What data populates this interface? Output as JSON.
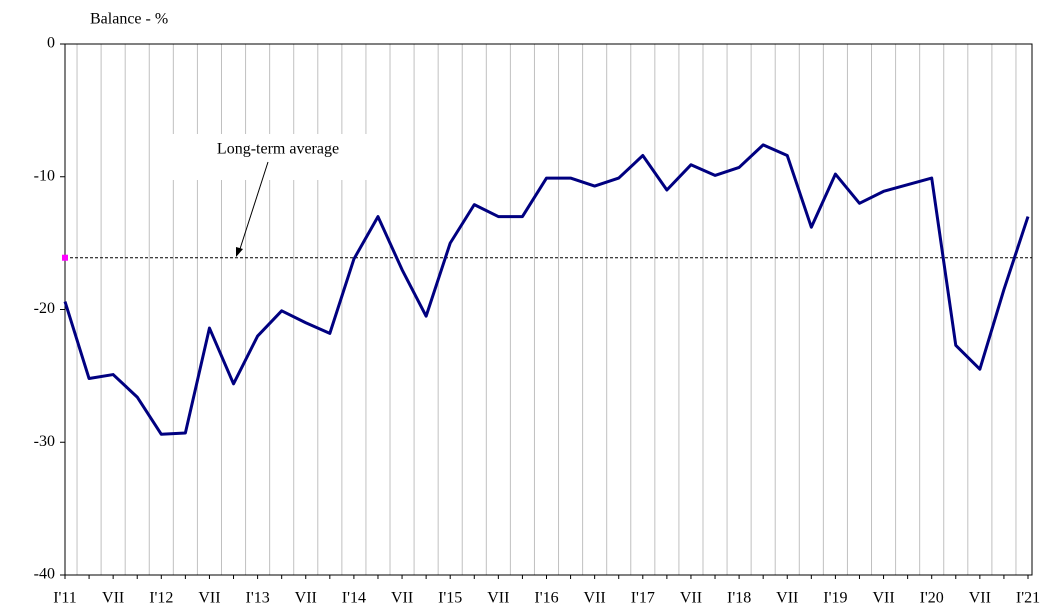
{
  "chart_data": {
    "type": "line",
    "y_axis_label": "Balance - %",
    "categories": [
      "I'11",
      null,
      "VII",
      null,
      "I'12",
      null,
      "VII",
      null,
      "I'13",
      null,
      "VII",
      null,
      "I'14",
      null,
      "VII",
      null,
      "I'15",
      null,
      "VII",
      null,
      "I'16",
      null,
      "VII",
      null,
      "I'17",
      null,
      "VII",
      null,
      "I'18",
      null,
      "VII",
      null,
      "I'19",
      null,
      "VII",
      null,
      "I'20",
      null,
      "VII",
      null,
      "I'21"
    ],
    "series": [
      {
        "name": "Balance",
        "color": "#000080",
        "values": [
          -19.4,
          -25.2,
          -24.9,
          -26.6,
          -29.4,
          -29.3,
          -21.4,
          -25.6,
          -22,
          -20.1,
          -21,
          -21.8,
          -16.2,
          -13,
          -17,
          -20.5,
          -15,
          -12.1,
          -13,
          -13,
          -10.1,
          -10.1,
          -10.7,
          -10.1,
          -8.4,
          -11,
          -9.1,
          -9.9,
          -9.3,
          -7.6,
          -8.4,
          -13.8,
          -9.8,
          -12,
          -11.1,
          -10.6,
          -10.1,
          -22.7,
          -24.5,
          -18.5,
          -13
        ]
      }
    ],
    "average": {
      "label": "Long-term average",
      "value": -16.1,
      "color": "#ff00ff"
    },
    "ylim": [
      -40,
      0
    ],
    "yticks": [
      0,
      -10,
      -20,
      -30,
      -40
    ],
    "grid": "vertical"
  }
}
